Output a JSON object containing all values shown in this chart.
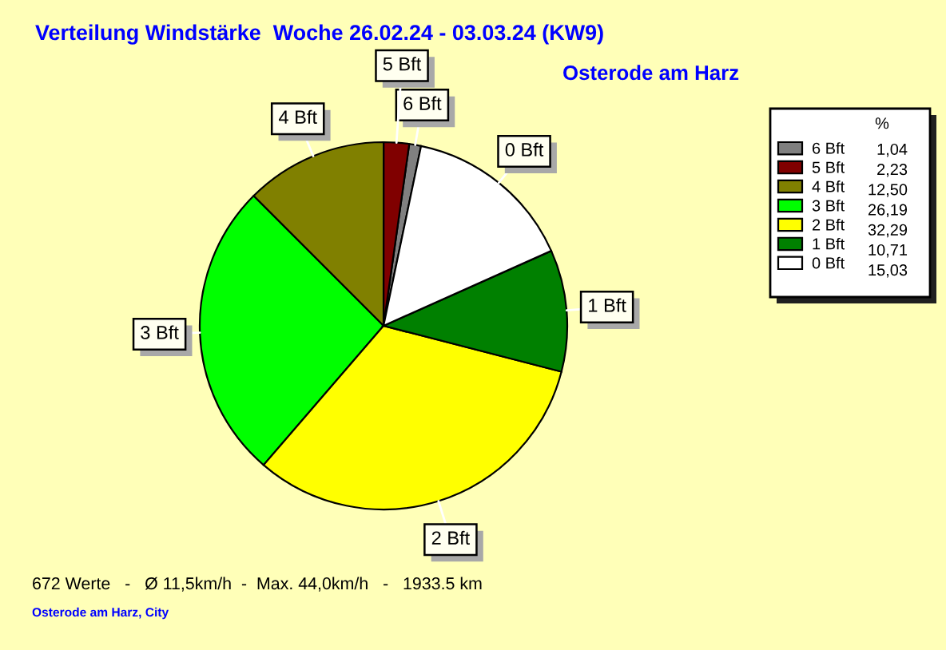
{
  "chart_data": {
    "type": "pie",
    "title": "Verteilung Windstärke  Woche 26.02.24 - 03.03.24 (KW9)",
    "subtitle": "Osterode am Harz",
    "categories": [
      "6 Bft",
      "5 Bft",
      "4 Bft",
      "3 Bft",
      "2 Bft",
      "1 Bft",
      "0 Bft"
    ],
    "values": [
      1.04,
      2.23,
      12.5,
      26.19,
      32.29,
      10.71,
      15.03
    ],
    "colors": [
      "#808080",
      "#800000",
      "#808000",
      "#00ff00",
      "#ffff00",
      "#008000",
      "#ffffff"
    ],
    "value_labels": [
      "1,04",
      "2,23",
      "12,50",
      "26,19",
      "32,29",
      "10,71",
      "15,03"
    ],
    "legend_title": "%",
    "legend": "top right",
    "annotations": [
      "672 Werte   -   Ø 11,5km/h  -  Max. 44,0km/h   -   1933.5 km",
      "Osterode am Harz, City"
    ]
  }
}
